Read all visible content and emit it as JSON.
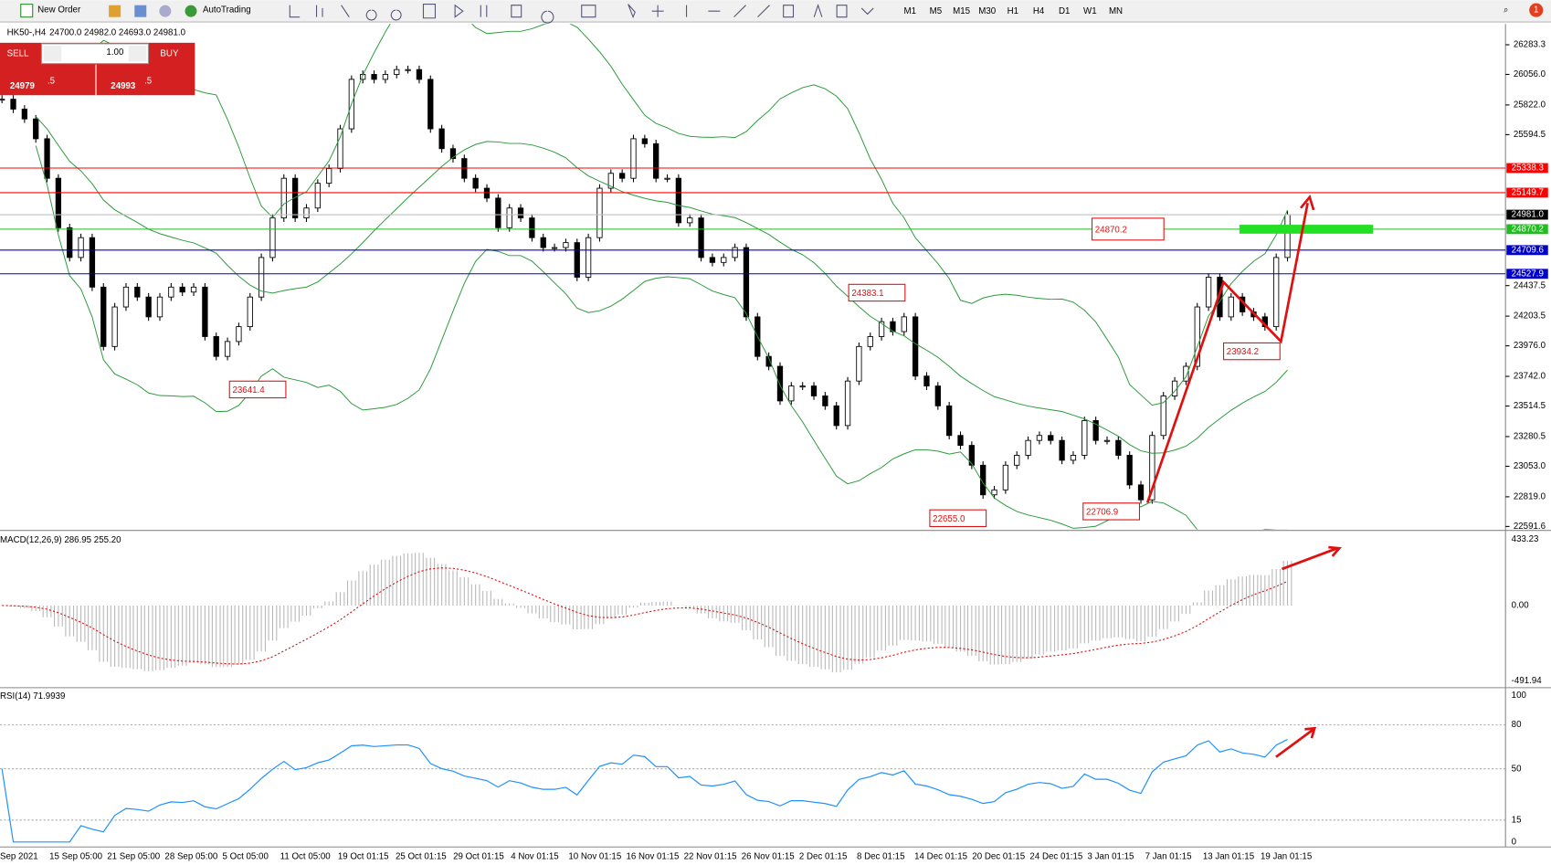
{
  "toolbar": {
    "new_order": "New Order",
    "autotrading": "AutoTrading",
    "timeframes": [
      "M1",
      "M5",
      "M15",
      "M30",
      "H1",
      "H4",
      "D1",
      "W1",
      "MN"
    ],
    "badge": "1"
  },
  "trade_panel": {
    "sell": "SELL",
    "lot": "1.00",
    "buy": "BUY",
    "bid_main": "24979",
    "bid_pip": ".5",
    "ask_main": "24993",
    "ask_pip": ".5"
  },
  "chart": {
    "symbol": "HK50-,H4",
    "ohlc": "24700.0 24982.0 24693.0 24981.0",
    "closes": [
      25866,
      25790,
      25715,
      25563,
      25260,
      24881,
      24653,
      24805,
      24426,
      23971,
      24274,
      24426,
      24350,
      24198,
      24350,
      24426,
      24388,
      24426,
      24047,
      23895,
      24009,
      24123,
      24350,
      24653,
      24956,
      25260,
      24956,
      25032,
      25222,
      25335,
      25639,
      26018,
      26056,
      26018,
      26056,
      26093,
      26093,
      26018,
      25639,
      25487,
      25411,
      25260,
      25184,
      25108,
      24881,
      25032,
      24956,
      24805,
      24729,
      24729,
      24767,
      24502,
      24805,
      25184,
      25298,
      25260,
      25563,
      25525,
      25260,
      25260,
      24919,
      24956,
      24653,
      24615,
      24653,
      24729,
      24198,
      23895,
      23819,
      23554,
      23668,
      23668,
      23592,
      23516,
      23365,
      23706,
      23971,
      24047,
      24161,
      24085,
      24198,
      23744,
      23668,
      23516,
      23289,
      23213,
      23061,
      22834,
      22872,
      23061,
      23137,
      23251,
      23289,
      23251,
      23099,
      23137,
      23403,
      23251,
      23251,
      23137,
      22910,
      22796,
      23289,
      23592,
      23706,
      23819,
      24274,
      24502,
      24198,
      24350,
      24236,
      24198,
      24123,
      24653,
      24981
    ],
    "price_axis": [
      "26283.3",
      "26056.0",
      "25822.0",
      "25594.5",
      "24437.5",
      "24203.5",
      "23976.0",
      "23742.0",
      "23514.5",
      "23280.5",
      "23053.0",
      "22819.0",
      "22591.6"
    ],
    "levels": [
      {
        "price": "25338.3",
        "color": "#ff0000"
      },
      {
        "price": "25149.7",
        "color": "#ff0000"
      },
      {
        "price": "24981.0",
        "color": "#000000"
      },
      {
        "price": "24870.2",
        "color": "#22bb22"
      },
      {
        "price": "24709.6",
        "color": "#0000cc"
      },
      {
        "price": "24527.9",
        "color": "#0000cc"
      }
    ],
    "annotations": [
      "23641.4",
      "24383.1",
      "22655.0",
      "22706.9",
      "23934.2",
      "24870.2"
    ],
    "dates": [
      "Sep 2021",
      "15 Sep 05:00",
      "21 Sep 05:00",
      "28 Sep 05:00",
      "5 Oct 05:00",
      "11 Oct 05:00",
      "19 Oct 01:15",
      "25 Oct 01:15",
      "29 Oct 01:15",
      "4 Nov 01:15",
      "10 Nov 01:15",
      "16 Nov 01:15",
      "22 Nov 01:15",
      "26 Nov 01:15",
      "2 Dec 01:15",
      "8 Dec 01:15",
      "14 Dec 01:15",
      "20 Dec 01:15",
      "24 Dec 01:15",
      "3 Jan 01:15",
      "7 Jan 01:15",
      "13 Jan 01:15",
      "19 Jan 01:15"
    ]
  },
  "macd": {
    "label": "MACD(12,26,9) 286.95 255.20",
    "axis": [
      "433.23",
      "0.00",
      "-491.94"
    ]
  },
  "rsi": {
    "label": "RSI(14) 71.9939",
    "axis": [
      100,
      80,
      50,
      15,
      0
    ]
  }
}
